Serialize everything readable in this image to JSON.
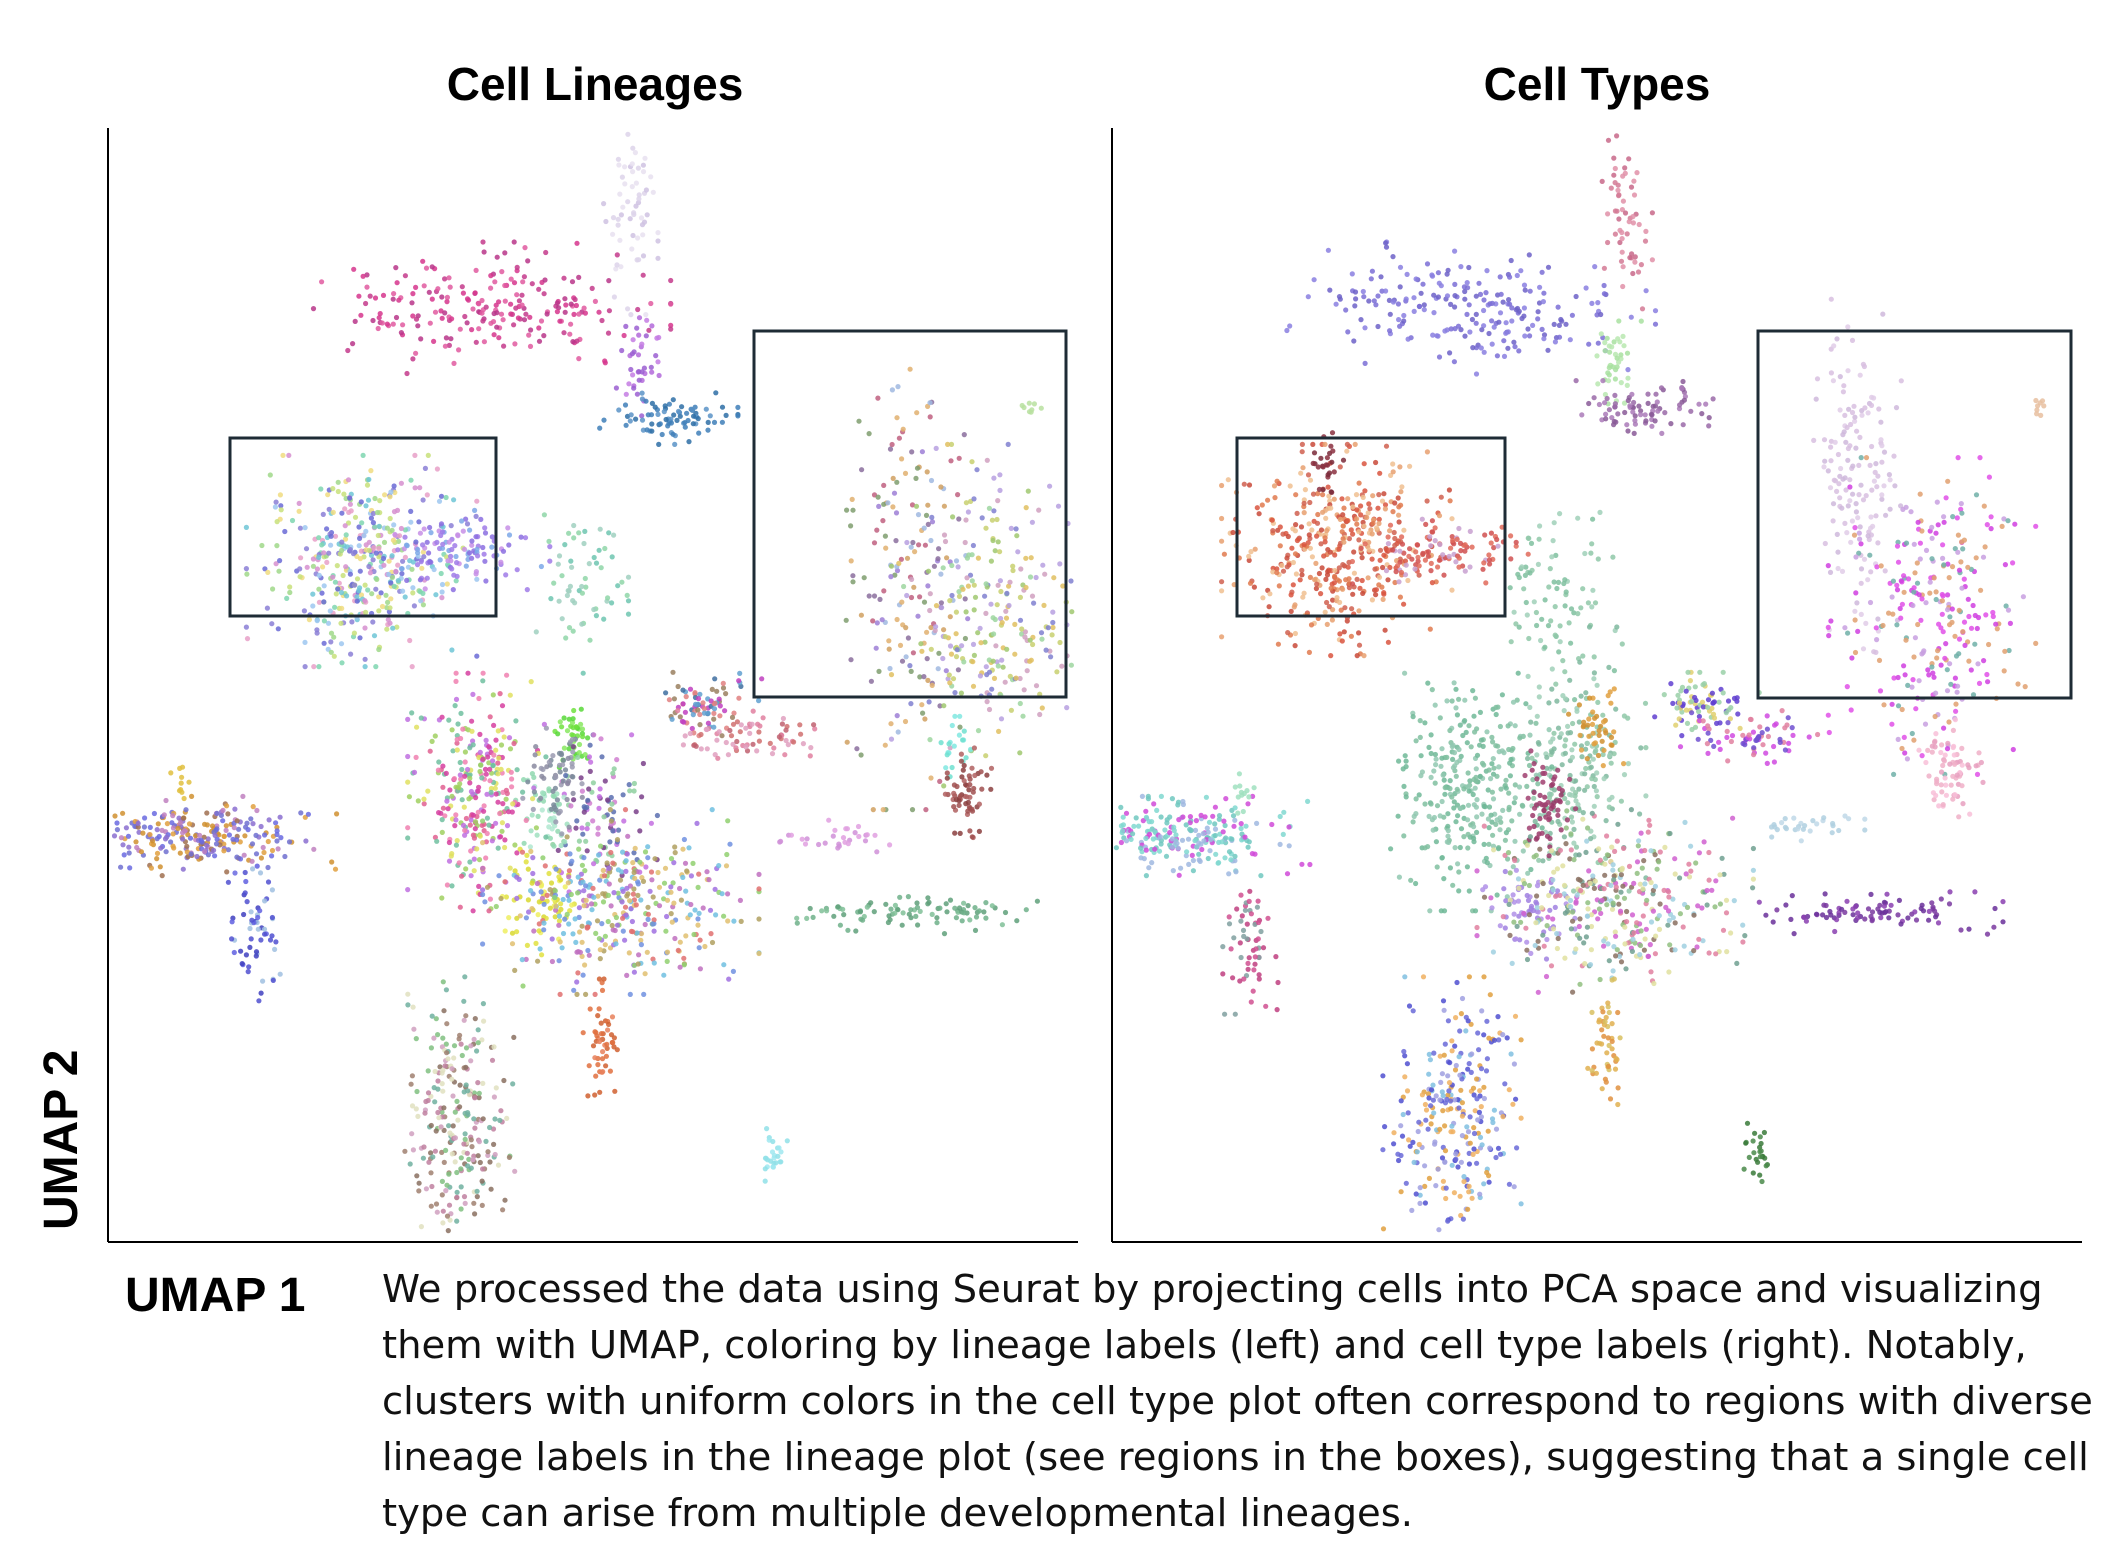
{
  "chart_data": {
    "type": "scatter",
    "xlabel": "UMAP 1",
    "ylabel": "UMAP 2",
    "panels": [
      {
        "title": "Cell Lineages",
        "coloring": "lineage labels",
        "clusters": [
          {
            "cx": 0.39,
            "cy": 0.84,
            "sx": 0.08,
            "sy": 0.025,
            "n": 220,
            "colors": [
              "#d6368d",
              "#c43b8c",
              "#e05aa0",
              "#b8368a"
            ]
          },
          {
            "cx": 0.54,
            "cy": 0.93,
            "sx": 0.012,
            "sy": 0.04,
            "n": 60,
            "colors": [
              "#ddd3ea",
              "#cfc2e2",
              "#e8e0f0"
            ]
          },
          {
            "cx": 0.55,
            "cy": 0.79,
            "sx": 0.012,
            "sy": 0.02,
            "n": 40,
            "colors": [
              "#b36adb",
              "#9b5fd1",
              "#c47de3"
            ]
          },
          {
            "cx": 0.58,
            "cy": 0.74,
            "sx": 0.03,
            "sy": 0.01,
            "n": 80,
            "colors": [
              "#3f7fb8",
              "#2e6ea6",
              "#5a93c7"
            ]
          },
          {
            "cx": 0.26,
            "cy": 0.61,
            "sx": 0.05,
            "sy": 0.04,
            "n": 420,
            "colors": [
              "#6ec6d6",
              "#a0d88a",
              "#e8a0c8",
              "#8b7fd6",
              "#f0dc80",
              "#7fd6b0",
              "#d68fcf",
              "#9ec7f0",
              "#c8e07a",
              "#6b6bd6"
            ]
          },
          {
            "cx": 0.36,
            "cy": 0.62,
            "sx": 0.04,
            "sy": 0.015,
            "n": 110,
            "colors": [
              "#8b6fe0",
              "#a07be8",
              "#c78fe6",
              "#7da8e8"
            ]
          },
          {
            "cx": 0.49,
            "cy": 0.58,
            "sx": 0.02,
            "sy": 0.03,
            "n": 60,
            "colors": [
              "#6ec6b0",
              "#8fd6a8",
              "#a0d0c0"
            ]
          },
          {
            "cx": 0.83,
            "cy": 0.6,
            "sx": 0.03,
            "sy": 0.09,
            "n": 170,
            "colors": [
              "#a0b8e0",
              "#8b6f9e",
              "#d0a060",
              "#9e7fd6",
              "#c06080",
              "#7f9e6f",
              "#e0b070"
            ]
          },
          {
            "cx": 0.92,
            "cy": 0.56,
            "sx": 0.045,
            "sy": 0.065,
            "n": 260,
            "colors": [
              "#c8d070",
              "#a0c870",
              "#b7a0e0",
              "#e0c060",
              "#9ed6a0",
              "#d0a0c0",
              "#8080d0"
            ]
          },
          {
            "cx": 0.96,
            "cy": 0.75,
            "sx": 0.005,
            "sy": 0.005,
            "n": 8,
            "colors": [
              "#b8e0a0"
            ]
          },
          {
            "cx": 0.48,
            "cy": 0.45,
            "sx": 0.008,
            "sy": 0.015,
            "n": 40,
            "colors": [
              "#70e040",
              "#58d838",
              "#88e860"
            ]
          },
          {
            "cx": 0.51,
            "cy": 0.38,
            "sx": 0.025,
            "sy": 0.03,
            "n": 110,
            "colors": [
              "#7a3f8a",
              "#c36fe0",
              "#8fd0a0",
              "#5a6fb0",
              "#d07fd0"
            ]
          },
          {
            "cx": 0.45,
            "cy": 0.38,
            "sx": 0.015,
            "sy": 0.02,
            "n": 50,
            "colors": [
              "#a0e0c0",
              "#90d8b0",
              "#b0e8d0"
            ]
          },
          {
            "cx": 0.62,
            "cy": 0.48,
            "sx": 0.025,
            "sy": 0.012,
            "n": 80,
            "colors": [
              "#3f6fa0",
              "#c040c0",
              "#e08080",
              "#60a0d0",
              "#9a8060"
            ]
          },
          {
            "cx": 0.66,
            "cy": 0.45,
            "sx": 0.03,
            "sy": 0.01,
            "n": 70,
            "colors": [
              "#e080a0",
              "#c06070",
              "#e0a0c0",
              "#d07070"
            ]
          },
          {
            "cx": 0.38,
            "cy": 0.4,
            "sx": 0.03,
            "sy": 0.045,
            "n": 300,
            "colors": [
              "#d640a0",
              "#a0d060",
              "#e06090",
              "#c070e0",
              "#e0e060",
              "#70c0a0",
              "#f080b0"
            ]
          },
          {
            "cx": 0.46,
            "cy": 0.41,
            "sx": 0.015,
            "sy": 0.02,
            "n": 60,
            "colors": [
              "#8a8aa0",
              "#9a9ab0",
              "#7a8a9a"
            ]
          },
          {
            "cx": 0.88,
            "cy": 0.44,
            "sx": 0.008,
            "sy": 0.012,
            "n": 20,
            "colors": [
              "#70e0d0",
              "#80e8e0"
            ]
          },
          {
            "cx": 0.89,
            "cy": 0.4,
            "sx": 0.012,
            "sy": 0.018,
            "n": 60,
            "colors": [
              "#a05050",
              "#8b4040",
              "#b06060"
            ]
          },
          {
            "cx": 0.09,
            "cy": 0.36,
            "sx": 0.06,
            "sy": 0.015,
            "n": 260,
            "colors": [
              "#d09030",
              "#8b6fd0",
              "#c080c0",
              "#6a6ae0",
              "#e0a040",
              "#a07050",
              "#7070d0"
            ]
          },
          {
            "cx": 0.07,
            "cy": 0.41,
            "sx": 0.005,
            "sy": 0.008,
            "n": 10,
            "colors": [
              "#e0c040"
            ]
          },
          {
            "cx": 0.75,
            "cy": 0.36,
            "sx": 0.025,
            "sy": 0.006,
            "n": 30,
            "colors": [
              "#e0a0e0",
              "#d090d8"
            ]
          },
          {
            "cx": 0.82,
            "cy": 0.29,
            "sx": 0.06,
            "sy": 0.008,
            "n": 90,
            "colors": [
              "#6fb08a",
              "#80c098",
              "#5fa07a"
            ]
          },
          {
            "cx": 0.15,
            "cy": 0.27,
            "sx": 0.012,
            "sy": 0.03,
            "n": 60,
            "colors": [
              "#a0c0e0",
              "#5050d0",
              "#6060e0",
              "#4040c0"
            ]
          },
          {
            "cx": 0.45,
            "cy": 0.3,
            "sx": 0.02,
            "sy": 0.02,
            "n": 60,
            "colors": [
              "#e0e040",
              "#d8d830",
              "#eeee60"
            ]
          },
          {
            "cx": 0.53,
            "cy": 0.3,
            "sx": 0.06,
            "sy": 0.035,
            "n": 380,
            "colors": [
              "#a070e0",
              "#e0c070",
              "#70c0e0",
              "#c070c0",
              "#90d070",
              "#e07070",
              "#7090e0",
              "#b0a060"
            ]
          },
          {
            "cx": 0.51,
            "cy": 0.17,
            "sx": 0.008,
            "sy": 0.025,
            "n": 50,
            "colors": [
              "#e07040",
              "#d06030",
              "#e8805a"
            ]
          },
          {
            "cx": 0.36,
            "cy": 0.1,
            "sx": 0.025,
            "sy": 0.055,
            "n": 260,
            "colors": [
              "#8a7060",
              "#d0a0c0",
              "#80c080",
              "#c080a0",
              "#e0e0c0",
              "#a08070",
              "#70b0a0"
            ]
          },
          {
            "cx": 0.69,
            "cy": 0.07,
            "sx": 0.008,
            "sy": 0.01,
            "n": 25,
            "colors": [
              "#90e0e8",
              "#a0e8f0"
            ]
          }
        ]
      },
      {
        "title": "Cell Types",
        "coloring": "cell type labels",
        "clusters": [
          {
            "cx": 0.37,
            "cy": 0.84,
            "sx": 0.08,
            "sy": 0.025,
            "n": 220,
            "colors": [
              "#7b6fd6",
              "#8a7fe0",
              "#6d62c8"
            ]
          },
          {
            "cx": 0.53,
            "cy": 0.93,
            "sx": 0.012,
            "sy": 0.04,
            "n": 60,
            "colors": [
              "#d47a95",
              "#c8688a",
              "#e090a8"
            ]
          },
          {
            "cx": 0.52,
            "cy": 0.79,
            "sx": 0.012,
            "sy": 0.02,
            "n": 40,
            "colors": [
              "#a8e0a0",
              "#b8e8b0"
            ]
          },
          {
            "cx": 0.55,
            "cy": 0.75,
            "sx": 0.03,
            "sy": 0.01,
            "n": 80,
            "colors": [
              "#9a6aa8",
              "#8a5a98",
              "#aa7ab8"
            ]
          },
          {
            "cx": 0.23,
            "cy": 0.62,
            "sx": 0.05,
            "sy": 0.04,
            "n": 420,
            "colors": [
              "#d9553f",
              "#e07a4f",
              "#c94a3a",
              "#e8a070",
              "#f0c090",
              "#d06050"
            ]
          },
          {
            "cx": 0.22,
            "cy": 0.7,
            "sx": 0.008,
            "sy": 0.012,
            "n": 25,
            "colors": [
              "#7a2a3a",
              "#8b3040"
            ]
          },
          {
            "cx": 0.34,
            "cy": 0.62,
            "sx": 0.04,
            "sy": 0.015,
            "n": 110,
            "colors": [
              "#d05050",
              "#e06a5a",
              "#c8a0d0"
            ]
          },
          {
            "cx": 0.46,
            "cy": 0.58,
            "sx": 0.025,
            "sy": 0.04,
            "n": 80,
            "colors": [
              "#8fc8a8",
              "#7fbf9f",
              "#a0d0b8"
            ]
          },
          {
            "cx": 0.77,
            "cy": 0.68,
            "sx": 0.02,
            "sy": 0.07,
            "n": 150,
            "colors": [
              "#d8c0e0",
              "#cfb8dc",
              "#e0cce8"
            ]
          },
          {
            "cx": 0.85,
            "cy": 0.56,
            "sx": 0.045,
            "sy": 0.06,
            "n": 280,
            "colors": [
              "#d040e0",
              "#e050e8",
              "#70b0a8",
              "#e0a070",
              "#c8a0e0"
            ]
          },
          {
            "cx": 0.96,
            "cy": 0.75,
            "sx": 0.005,
            "sy": 0.005,
            "n": 8,
            "colors": [
              "#e8c0a0"
            ]
          },
          {
            "cx": 0.48,
            "cy": 0.43,
            "sx": 0.03,
            "sy": 0.05,
            "n": 200,
            "colors": [
              "#8fc8a8",
              "#a0d0b8",
              "#7fb89f"
            ]
          },
          {
            "cx": 0.37,
            "cy": 0.4,
            "sx": 0.035,
            "sy": 0.045,
            "n": 320,
            "colors": [
              "#80c0a0",
              "#90c8b0",
              "#70b898"
            ]
          },
          {
            "cx": 0.45,
            "cy": 0.39,
            "sx": 0.012,
            "sy": 0.02,
            "n": 60,
            "colors": [
              "#9a3a6a",
              "#a04070"
            ]
          },
          {
            "cx": 0.5,
            "cy": 0.46,
            "sx": 0.012,
            "sy": 0.015,
            "n": 40,
            "colors": [
              "#e0a040",
              "#d09030"
            ]
          },
          {
            "cx": 0.61,
            "cy": 0.48,
            "sx": 0.025,
            "sy": 0.012,
            "n": 80,
            "colors": [
              "#9ad0a8",
              "#e0d070",
              "#6040d0"
            ]
          },
          {
            "cx": 0.66,
            "cy": 0.45,
            "sx": 0.03,
            "sy": 0.01,
            "n": 70,
            "colors": [
              "#d04ae0",
              "#7050d0",
              "#e080a0"
            ]
          },
          {
            "cx": 0.87,
            "cy": 0.42,
            "sx": 0.015,
            "sy": 0.02,
            "n": 70,
            "colors": [
              "#f0b0c8",
              "#e8a0c0",
              "#f8c0d8"
            ]
          },
          {
            "cx": 0.07,
            "cy": 0.36,
            "sx": 0.055,
            "sy": 0.015,
            "n": 250,
            "colors": [
              "#d04ad8",
              "#80d8d0",
              "#a0b8e0",
              "#70c8c0"
            ]
          },
          {
            "cx": 0.13,
            "cy": 0.4,
            "sx": 0.008,
            "sy": 0.008,
            "n": 12,
            "colors": [
              "#a0e0c0"
            ]
          },
          {
            "cx": 0.72,
            "cy": 0.37,
            "sx": 0.025,
            "sy": 0.006,
            "n": 30,
            "colors": [
              "#b0d0e0",
              "#c0d8e8"
            ]
          },
          {
            "cx": 0.78,
            "cy": 0.29,
            "sx": 0.06,
            "sy": 0.008,
            "n": 90,
            "colors": [
              "#7a3aa0",
              "#8a40b0",
              "#6a309a"
            ]
          },
          {
            "cx": 0.14,
            "cy": 0.27,
            "sx": 0.012,
            "sy": 0.03,
            "n": 60,
            "colors": [
              "#c04080",
              "#80a0a0",
              "#d05090"
            ]
          },
          {
            "cx": 0.43,
            "cy": 0.29,
            "sx": 0.02,
            "sy": 0.02,
            "n": 60,
            "colors": [
              "#a080e0",
              "#b090e8"
            ]
          },
          {
            "cx": 0.52,
            "cy": 0.3,
            "sx": 0.06,
            "sy": 0.035,
            "n": 380,
            "colors": [
              "#8a7060",
              "#90c080",
              "#e0e0a0",
              "#d060d0",
              "#70a090",
              "#e080a0",
              "#a0d0e0"
            ]
          },
          {
            "cx": 0.51,
            "cy": 0.17,
            "sx": 0.008,
            "sy": 0.025,
            "n": 50,
            "colors": [
              "#e09040",
              "#d8c060",
              "#e0b050"
            ]
          },
          {
            "cx": 0.35,
            "cy": 0.1,
            "sx": 0.03,
            "sy": 0.055,
            "n": 280,
            "colors": [
              "#5050d0",
              "#e0a040",
              "#80c0e0",
              "#a0a0e0",
              "#6a6ad8",
              "#f0b060"
            ]
          },
          {
            "cx": 0.67,
            "cy": 0.07,
            "sx": 0.008,
            "sy": 0.012,
            "n": 25,
            "colors": [
              "#4a8a4a",
              "#3a7a3a"
            ]
          }
        ]
      }
    ]
  },
  "caption": "We processed the data using Seurat by projecting cells into PCA space and visualizing them with UMAP, coloring by lineage labels (left) and cell type labels (right). Notably, clusters with uniform colors in the cell type plot often correspond to regions with diverse lineage labels in the lineage plot (see regions in the boxes), suggesting that a single cell type can arise from multiple developmental lineages.",
  "colors": {
    "axis": "#000000",
    "highlight_box": "#1e2b35"
  }
}
